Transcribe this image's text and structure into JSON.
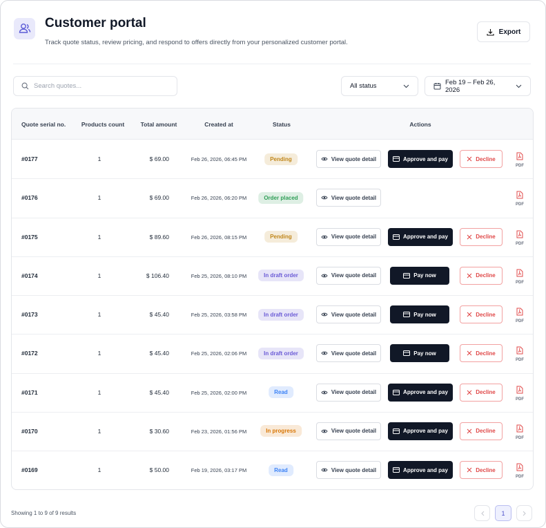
{
  "header": {
    "title": "Customer portal",
    "subtitle": "Track quote status, review pricing, and respond to offers directly from your personalized customer portal.",
    "export": "Export"
  },
  "filters": {
    "search_placeholder": "Search quotes...",
    "status": "All status",
    "date_range": "Feb 19 – Feb 26, 2026"
  },
  "table": {
    "headers": [
      "Quote serial no.",
      "Products count",
      "Total amount",
      "Created at",
      "Status",
      "Actions"
    ],
    "rows": [
      {
        "serial": "#0177",
        "products": "1",
        "total": "$ 69.00",
        "created": "Feb 26, 2026, 06:45 PM",
        "status": "Pending",
        "status_color": "#c0861a",
        "actions": [
          "View quote detail",
          "Approve and pay",
          "Decline"
        ],
        "file": "PDF"
      },
      {
        "serial": "#0176",
        "products": "1",
        "total": "$ 69.00",
        "created": "Feb 26, 2026, 06:20 PM",
        "status": "Order placed",
        "status_color": "#2f9e57",
        "actions": [
          "View quote detail"
        ],
        "file": "PDF"
      },
      {
        "serial": "#0175",
        "products": "1",
        "total": "$ 89.60",
        "created": "Feb 26, 2026, 08:15 PM",
        "status": "Pending",
        "status_color": "#c0861a",
        "actions": [
          "View quote detail",
          "Approve and pay",
          "Decline"
        ],
        "file": "PDF"
      },
      {
        "serial": "#0174",
        "products": "1",
        "total": "$ 106.40",
        "created": "Feb 25, 2026, 08:10 PM",
        "status": "In draft order",
        "status_color": "#6b5bd6",
        "actions": [
          "View quote detail",
          "Pay now",
          "Decline"
        ],
        "file": "PDF"
      },
      {
        "serial": "#0173",
        "products": "1",
        "total": "$ 45.40",
        "created": "Feb 25, 2026, 03:58 PM",
        "status": "In draft order",
        "status_color": "#6b5bd6",
        "actions": [
          "View quote detail",
          "Pay now",
          "Decline"
        ],
        "file": "PDF"
      },
      {
        "serial": "#0172",
        "products": "1",
        "total": "$ 45.40",
        "created": "Feb 25, 2026, 02:06 PM",
        "status": "In draft order",
        "status_color": "#6b5bd6",
        "actions": [
          "View quote detail",
          "Pay now",
          "Decline"
        ],
        "file": "PDF"
      },
      {
        "serial": "#0171",
        "products": "1",
        "total": "$ 45.40",
        "created": "Feb 25, 2026, 02:00 PM",
        "status": "Read",
        "status_color": "#3b82f6",
        "actions": [
          "View quote detail",
          "Approve and pay",
          "Decline"
        ],
        "file": "PDF"
      },
      {
        "serial": "#0170",
        "products": "1",
        "total": "$ 30.60",
        "created": "Feb 23, 2026, 01:56 PM",
        "status": "In progress",
        "status_color": "#d97706",
        "actions": [
          "View quote detail",
          "Approve and pay",
          "Decline"
        ],
        "file": "PDF"
      },
      {
        "serial": "#0169",
        "products": "1",
        "total": "$ 50.00",
        "created": "Feb 19, 2026, 03:17 PM",
        "status": "Read",
        "status_color": "#3b82f6",
        "actions": [
          "View quote detail",
          "Approve and pay",
          "Decline"
        ],
        "file": "PDF"
      }
    ]
  },
  "footer": {
    "summary": "Showing 1 to 9 of 9 results",
    "page": "1"
  }
}
